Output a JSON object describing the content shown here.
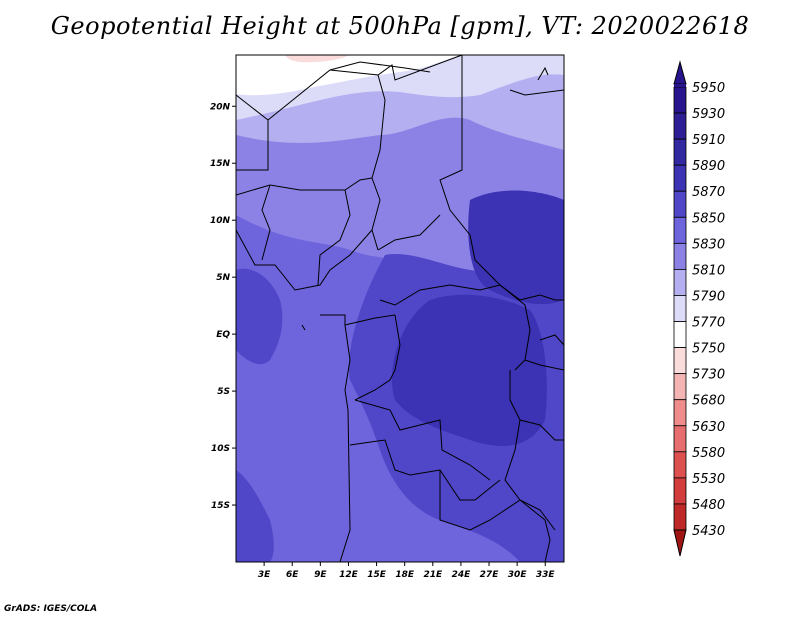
{
  "title": "Geopotential Height at 500hPa [gpm], VT: 2020022618",
  "footer": "GrADS: IGES/COLA",
  "map": {
    "lat_range": [
      -20,
      24.5
    ],
    "lon_range": [
      0,
      35
    ],
    "lat_ticks": [
      {
        "value": 20,
        "label": "20N"
      },
      {
        "value": 15,
        "label": "15N"
      },
      {
        "value": 10,
        "label": "10N"
      },
      {
        "value": 5,
        "label": "5N"
      },
      {
        "value": 0,
        "label": "EQ"
      },
      {
        "value": -5,
        "label": "5S"
      },
      {
        "value": -10,
        "label": "10S"
      },
      {
        "value": -15,
        "label": "15S"
      }
    ],
    "lon_ticks": [
      {
        "value": 3,
        "label": "3E"
      },
      {
        "value": 6,
        "label": "6E"
      },
      {
        "value": 9,
        "label": "9E"
      },
      {
        "value": 12,
        "label": "12E"
      },
      {
        "value": 15,
        "label": "15E"
      },
      {
        "value": 18,
        "label": "18E"
      },
      {
        "value": 21,
        "label": "21E"
      },
      {
        "value": 24,
        "label": "24E"
      },
      {
        "value": 27,
        "label": "27E"
      },
      {
        "value": 30,
        "label": "30E"
      },
      {
        "value": 33,
        "label": "33E"
      }
    ]
  },
  "colorbar": {
    "levels": [
      {
        "label": "5950",
        "color": "#28148c"
      },
      {
        "label": "5930",
        "color": "#2d1e96"
      },
      {
        "label": "5910",
        "color": "#3228a0"
      },
      {
        "label": "5890",
        "color": "#3c32b4"
      },
      {
        "label": "5870",
        "color": "#5046c8"
      },
      {
        "label": "5850",
        "color": "#6e64dc"
      },
      {
        "label": "5830",
        "color": "#8c82e6"
      },
      {
        "label": "5810",
        "color": "#b4aff0"
      },
      {
        "label": "5790",
        "color": "#dcdcf8"
      },
      {
        "label": "5770",
        "color": "#ffffff"
      },
      {
        "label": "5750",
        "color": "#fadcdc"
      },
      {
        "label": "5730",
        "color": "#f5b4b4"
      },
      {
        "label": "5680",
        "color": "#f08c8c"
      },
      {
        "label": "5630",
        "color": "#e66e6e"
      },
      {
        "label": "5580",
        "color": "#dc5050"
      },
      {
        "label": "5530",
        "color": "#d23c3c"
      },
      {
        "label": "5480",
        "color": "#be2828"
      },
      {
        "label": "5430",
        "color": "#a01414"
      }
    ]
  }
}
